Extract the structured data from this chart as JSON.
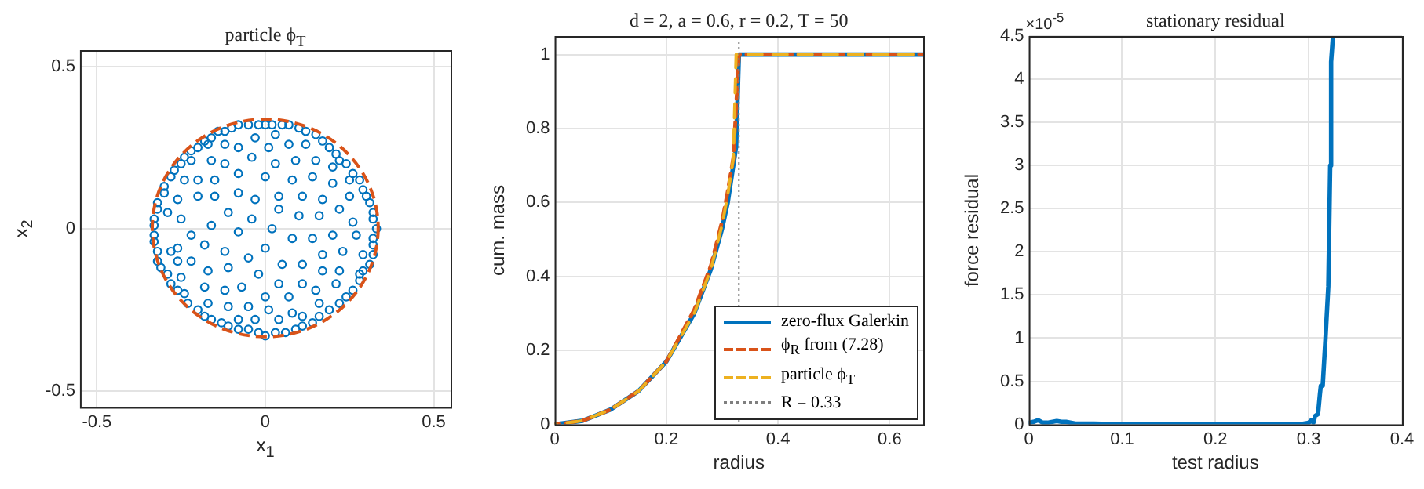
{
  "chart_data": [
    {
      "type": "scatter",
      "title": "particle ϕ$_{T}$",
      "xlabel": "x$_{1}$",
      "ylabel": "x$_{2}$",
      "xlim": [
        -0.55,
        0.55
      ],
      "ylim": [
        -0.55,
        0.55
      ],
      "xticks": [
        -0.5,
        0,
        0.5
      ],
      "yticks": [
        -0.5,
        0,
        0.5
      ],
      "grid": true,
      "marker": "circle",
      "series": [
        {
          "color": "#0072bd",
          "x": [
            -0.05,
            -0.02,
            0.0,
            0.02,
            0.05,
            0.07,
            0.1,
            0.12,
            0.15,
            0.17,
            0.19,
            0.21,
            0.22,
            0.24,
            0.26,
            0.28,
            0.29,
            0.3,
            0.31,
            0.32,
            0.32,
            0.33,
            0.32,
            0.32,
            0.32,
            0.31,
            0.29,
            0.28,
            0.26,
            0.24,
            0.22,
            0.19,
            0.16,
            0.14,
            0.11,
            0.09,
            0.06,
            0.03,
            0.0,
            -0.02,
            -0.05,
            -0.08,
            -0.11,
            -0.13,
            -0.16,
            -0.18,
            -0.2,
            -0.23,
            -0.24,
            -0.26,
            -0.28,
            -0.29,
            -0.31,
            -0.32,
            -0.32,
            -0.33,
            -0.33,
            -0.33,
            -0.33,
            -0.32,
            -0.32,
            -0.3,
            -0.3,
            -0.28,
            -0.27,
            -0.25,
            -0.24,
            -0.22,
            -0.2,
            -0.18,
            -0.16,
            -0.14,
            -0.12,
            -0.1,
            -0.08,
            -0.03,
            0.03,
            0.01,
            0.07,
            0.12,
            -0.17,
            -0.12,
            -0.08,
            -0.04,
            0.03,
            0.09,
            0.15,
            0.2,
            -0.22,
            -0.16,
            -0.12,
            -0.08,
            0.0,
            0.08,
            0.14,
            0.2,
            0.25,
            -0.24,
            -0.2,
            -0.15,
            -0.08,
            -0.03,
            0.04,
            0.11,
            0.17,
            0.25,
            -0.26,
            -0.2,
            -0.15,
            -0.11,
            -0.04,
            0.04,
            0.1,
            0.16,
            0.22,
            0.26,
            -0.29,
            -0.25,
            -0.16,
            -0.08,
            0.02,
            0.08,
            0.14,
            0.2,
            0.27,
            -0.26,
            -0.22,
            -0.18,
            -0.12,
            0.0,
            0.05,
            0.11,
            0.17,
            0.23,
            0.29,
            -0.28,
            -0.26,
            -0.22,
            -0.17,
            -0.11,
            -0.05,
            -0.02,
            0.04,
            0.11,
            0.17,
            0.22,
            0.28,
            -0.25,
            -0.18,
            -0.12,
            -0.07,
            0.0,
            0.07,
            0.15,
            0.21,
            -0.17,
            -0.11,
            -0.05,
            0.01,
            0.08,
            0.16,
            -0.08,
            -0.03,
            0.04,
            0.11
          ],
          "values": [
            0.32,
            0.32,
            0.32,
            0.32,
            0.32,
            0.32,
            0.31,
            0.3,
            0.29,
            0.27,
            0.25,
            0.23,
            0.21,
            0.2,
            0.17,
            0.15,
            0.12,
            0.1,
            0.08,
            0.05,
            0.03,
            0.0,
            -0.03,
            -0.05,
            -0.08,
            -0.11,
            -0.13,
            -0.16,
            -0.19,
            -0.21,
            -0.23,
            -0.25,
            -0.27,
            -0.29,
            -0.3,
            -0.31,
            -0.32,
            -0.32,
            -0.33,
            -0.32,
            -0.31,
            -0.31,
            -0.3,
            -0.29,
            -0.28,
            -0.27,
            -0.25,
            -0.23,
            -0.2,
            -0.19,
            -0.17,
            -0.14,
            -0.12,
            -0.1,
            -0.07,
            -0.04,
            -0.02,
            0.01,
            0.03,
            0.06,
            0.08,
            0.11,
            0.13,
            0.16,
            0.18,
            0.2,
            0.22,
            0.24,
            0.25,
            0.27,
            0.28,
            0.3,
            0.3,
            0.31,
            0.32,
            0.28,
            0.29,
            0.25,
            0.26,
            0.26,
            0.26,
            0.26,
            0.25,
            0.22,
            0.2,
            0.21,
            0.21,
            0.19,
            0.21,
            0.21,
            0.2,
            0.17,
            0.16,
            0.15,
            0.16,
            0.14,
            0.15,
            0.15,
            0.15,
            0.15,
            0.11,
            0.09,
            0.1,
            0.1,
            0.09,
            0.1,
            0.09,
            0.1,
            0.1,
            0.05,
            0.03,
            0.06,
            0.04,
            0.04,
            0.06,
            0.02,
            0.05,
            0.03,
            0.01,
            -0.01,
            0.0,
            -0.03,
            -0.03,
            -0.02,
            -0.02,
            -0.06,
            -0.02,
            -0.05,
            -0.07,
            -0.06,
            -0.11,
            -0.11,
            -0.08,
            -0.07,
            -0.08,
            -0.07,
            -0.1,
            -0.1,
            -0.13,
            -0.12,
            -0.09,
            -0.14,
            -0.17,
            -0.17,
            -0.13,
            -0.13,
            -0.14,
            -0.15,
            -0.18,
            -0.19,
            -0.18,
            -0.21,
            -0.21,
            -0.19,
            -0.17,
            -0.23,
            -0.24,
            -0.24,
            -0.25,
            -0.26,
            -0.23,
            -0.28,
            -0.28,
            -0.28,
            -0.27
          ]
        }
      ]
    },
    {
      "type": "line",
      "title": "d = 2, a = 0.6, r = 0.2, T = 50",
      "xlabel": "radius",
      "ylabel": "cum. mass",
      "xlim": [
        0,
        0.66
      ],
      "ylim": [
        0,
        1.05
      ],
      "xticks": [
        0,
        0.2,
        0.4,
        0.6
      ],
      "yticks": [
        0,
        0.2,
        0.4,
        0.6,
        0.8,
        1
      ],
      "grid": true,
      "legend": "bottom right",
      "series": [
        {
          "name": "zero-flux Galerkin",
          "color": "#0072bd",
          "line_style": "solid",
          "x": [
            0,
            0.05,
            0.1,
            0.15,
            0.2,
            0.25,
            0.28,
            0.3,
            0.31,
            0.32,
            0.325,
            0.33,
            0.66
          ],
          "values": [
            0,
            0.01,
            0.04,
            0.09,
            0.17,
            0.3,
            0.42,
            0.53,
            0.6,
            0.7,
            0.75,
            1,
            1
          ]
        },
        {
          "name": "ϕ$_{R}$ from (7.28)",
          "color": "#d95319",
          "line_style": "dashed",
          "x": [
            0,
            0.05,
            0.1,
            0.15,
            0.2,
            0.25,
            0.28,
            0.3,
            0.31,
            0.32,
            0.33,
            0.66
          ],
          "values": [
            0,
            0.01,
            0.04,
            0.09,
            0.17,
            0.31,
            0.43,
            0.55,
            0.63,
            0.72,
            1,
            1
          ]
        },
        {
          "name": "particle ϕ$_{T}$",
          "color": "#edb120",
          "line_style": "dashed",
          "x": [
            0,
            0.05,
            0.1,
            0.15,
            0.2,
            0.25,
            0.28,
            0.3,
            0.31,
            0.32,
            0.325,
            0.66
          ],
          "values": [
            0,
            0.01,
            0.04,
            0.09,
            0.17,
            0.3,
            0.42,
            0.54,
            0.62,
            0.72,
            1,
            1
          ]
        }
      ],
      "ref_lines": [
        {
          "axis": "x",
          "value": 0.33,
          "label": "R = 0.33",
          "color": "#7f7f7f",
          "line_style": "dotted"
        }
      ]
    },
    {
      "type": "line",
      "title": "stationary residual",
      "xlabel": "test radius",
      "ylabel": "force residual",
      "annotations": [
        "×10$^{-5}$"
      ],
      "xlim": [
        0,
        0.4
      ],
      "ylim": [
        0,
        4.5
      ],
      "xticks": [
        0,
        0.1,
        0.2,
        0.3,
        0.4
      ],
      "yticks": [
        0,
        0.5,
        1,
        1.5,
        2,
        2.5,
        3,
        3.5,
        4,
        4.5
      ],
      "grid": true,
      "series": [
        {
          "color": "#0072bd",
          "line_style": "solid",
          "x": [
            0,
            0.005,
            0.01,
            0.015,
            0.02,
            0.03,
            0.035,
            0.04,
            0.05,
            0.06,
            0.07,
            0.1,
            0.2,
            0.29,
            0.3,
            0.303,
            0.305,
            0.307,
            0.31,
            0.312,
            0.313,
            0.315,
            0.318,
            0.321,
            0.323,
            0.324,
            0.326
          ],
          "values": [
            0.02,
            0.03,
            0.05,
            0.02,
            0.02,
            0.04,
            0.03,
            0.03,
            0.01,
            0.01,
            0.01,
            0,
            0,
            0,
            0.02,
            0.05,
            0.02,
            0.1,
            0.12,
            0.35,
            0.45,
            0.45,
            1,
            1.6,
            3,
            4.2,
            4.5
          ]
        }
      ]
    }
  ]
}
